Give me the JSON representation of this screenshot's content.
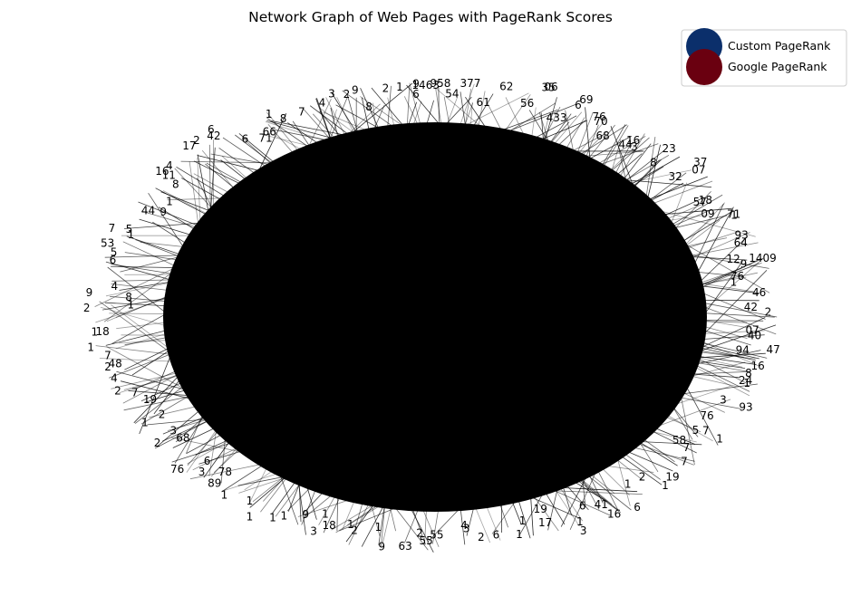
{
  "chart_data": {
    "type": "network",
    "title": "Network Graph of Web Pages with PageRank Scores",
    "layout": "spring",
    "axes_visible": false,
    "legend_placement": "top-right",
    "legend": [
      {
        "label": "Custom PageRank",
        "color": "#0b2f6b"
      },
      {
        "label": "Google PageRank",
        "color": "#6a0010"
      }
    ],
    "node_color": "#000000",
    "edge_color": "#000000",
    "node_labels": [
      "1463",
      "958",
      "54",
      "377",
      "61",
      "62",
      "56",
      "35",
      "06",
      "433",
      "69",
      "6",
      "70",
      "76",
      "68",
      "16",
      "44",
      "3",
      "23",
      "8",
      "37",
      "32",
      "07",
      "57",
      "18",
      "09",
      "71",
      "1",
      "93",
      "64",
      "12",
      "9",
      "1409",
      "76",
      "1",
      "46",
      "42",
      "2",
      "07",
      "40",
      "94",
      "47",
      "16",
      "8",
      "24",
      "1",
      "3",
      "93",
      "76",
      "7",
      "1",
      "5",
      "58",
      "7",
      "7",
      "19",
      "1",
      "2",
      "1",
      "6",
      "41",
      "16",
      "6",
      "1",
      "3",
      "17",
      "19",
      "1",
      "1",
      "6",
      "2",
      "4",
      "3",
      "55",
      "2",
      "55",
      "63",
      "1",
      "9",
      "2",
      "1",
      "1",
      "18",
      "3",
      "9",
      "1",
      "1",
      "1",
      "1",
      "1",
      "78",
      "89",
      "3",
      "6",
      "76",
      "68",
      "2",
      "3",
      "1",
      "2",
      "19",
      "7",
      "2",
      "4",
      "2",
      "48",
      "7",
      "1",
      "18",
      "1",
      "2",
      "1",
      "8",
      "9",
      "4",
      "6",
      "5",
      "53",
      "7",
      "1",
      "5",
      "44",
      "9",
      "1",
      "8",
      "11",
      "16",
      "4",
      "17",
      "2",
      "42",
      "6",
      "6",
      "71",
      "66",
      "1",
      "8",
      "7",
      "4",
      "3",
      "2",
      "8",
      "9",
      "2",
      "1",
      "9",
      "6"
    ]
  }
}
